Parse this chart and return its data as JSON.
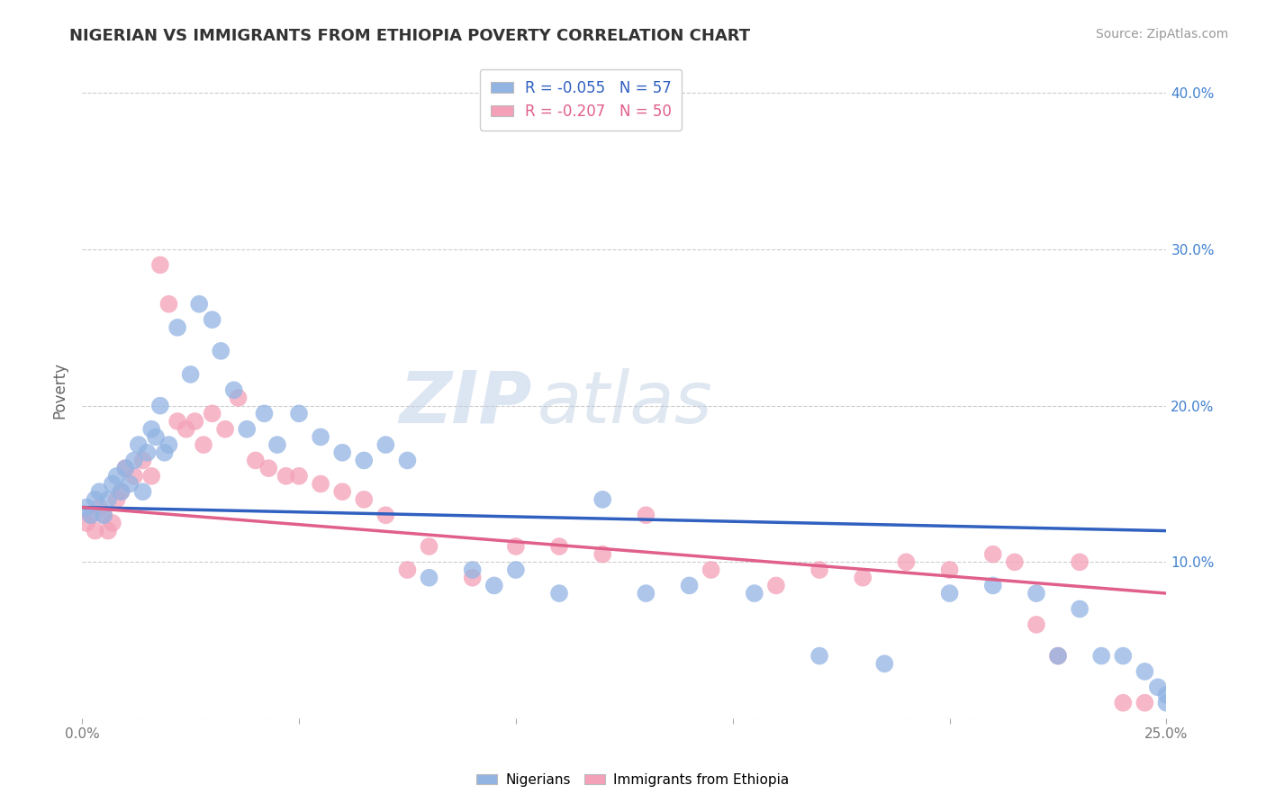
{
  "title": "NIGERIAN VS IMMIGRANTS FROM ETHIOPIA POVERTY CORRELATION CHART",
  "source": "Source: ZipAtlas.com",
  "ylabel": "Poverty",
  "xmin": 0.0,
  "xmax": 0.25,
  "ymin": 0.0,
  "ymax": 0.42,
  "yticks": [
    0.0,
    0.1,
    0.2,
    0.3,
    0.4
  ],
  "ytick_labels": [
    "",
    "10.0%",
    "20.0%",
    "30.0%",
    "40.0%"
  ],
  "blue_R": -0.055,
  "blue_N": 57,
  "pink_R": -0.207,
  "pink_N": 50,
  "blue_color": "#92b4e3",
  "pink_color": "#f4a0b8",
  "blue_line_color": "#3060c0",
  "pink_line_color": "#e0608a",
  "legend_blue_label": "Nigerians",
  "legend_pink_label": "Immigrants from Ethiopia",
  "watermark_zip": "ZIP",
  "watermark_atlas": "atlas",
  "background_color": "#ffffff",
  "blue_trend_x": [
    0.0,
    0.25
  ],
  "blue_trend_y": [
    0.135,
    0.12
  ],
  "pink_trend_x": [
    0.0,
    0.25
  ],
  "pink_trend_y": [
    0.135,
    0.08
  ],
  "blue_x": [
    0.001,
    0.002,
    0.003,
    0.004,
    0.005,
    0.006,
    0.007,
    0.008,
    0.009,
    0.01,
    0.011,
    0.012,
    0.013,
    0.014,
    0.015,
    0.016,
    0.017,
    0.018,
    0.019,
    0.02,
    0.022,
    0.025,
    0.027,
    0.03,
    0.032,
    0.035,
    0.038,
    0.042,
    0.045,
    0.05,
    0.055,
    0.06,
    0.065,
    0.07,
    0.075,
    0.08,
    0.09,
    0.095,
    0.1,
    0.11,
    0.12,
    0.13,
    0.14,
    0.155,
    0.17,
    0.185,
    0.2,
    0.21,
    0.22,
    0.225,
    0.23,
    0.235,
    0.24,
    0.245,
    0.248,
    0.25,
    0.25
  ],
  "blue_y": [
    0.135,
    0.13,
    0.14,
    0.145,
    0.13,
    0.14,
    0.15,
    0.155,
    0.145,
    0.16,
    0.15,
    0.165,
    0.175,
    0.145,
    0.17,
    0.185,
    0.18,
    0.2,
    0.17,
    0.175,
    0.25,
    0.22,
    0.265,
    0.255,
    0.235,
    0.21,
    0.185,
    0.195,
    0.175,
    0.195,
    0.18,
    0.17,
    0.165,
    0.175,
    0.165,
    0.09,
    0.095,
    0.085,
    0.095,
    0.08,
    0.14,
    0.08,
    0.085,
    0.08,
    0.04,
    0.035,
    0.08,
    0.085,
    0.08,
    0.04,
    0.07,
    0.04,
    0.04,
    0.03,
    0.02,
    0.015,
    0.01
  ],
  "pink_x": [
    0.001,
    0.002,
    0.003,
    0.004,
    0.005,
    0.006,
    0.007,
    0.008,
    0.009,
    0.01,
    0.012,
    0.014,
    0.016,
    0.018,
    0.02,
    0.022,
    0.024,
    0.026,
    0.028,
    0.03,
    0.033,
    0.036,
    0.04,
    0.043,
    0.047,
    0.05,
    0.055,
    0.06,
    0.065,
    0.07,
    0.075,
    0.08,
    0.09,
    0.1,
    0.11,
    0.12,
    0.13,
    0.145,
    0.16,
    0.17,
    0.18,
    0.19,
    0.2,
    0.21,
    0.215,
    0.22,
    0.225,
    0.23,
    0.24,
    0.245
  ],
  "pink_y": [
    0.125,
    0.13,
    0.12,
    0.135,
    0.13,
    0.12,
    0.125,
    0.14,
    0.145,
    0.16,
    0.155,
    0.165,
    0.155,
    0.29,
    0.265,
    0.19,
    0.185,
    0.19,
    0.175,
    0.195,
    0.185,
    0.205,
    0.165,
    0.16,
    0.155,
    0.155,
    0.15,
    0.145,
    0.14,
    0.13,
    0.095,
    0.11,
    0.09,
    0.11,
    0.11,
    0.105,
    0.13,
    0.095,
    0.085,
    0.095,
    0.09,
    0.1,
    0.095,
    0.105,
    0.1,
    0.06,
    0.04,
    0.1,
    0.01,
    0.01
  ]
}
